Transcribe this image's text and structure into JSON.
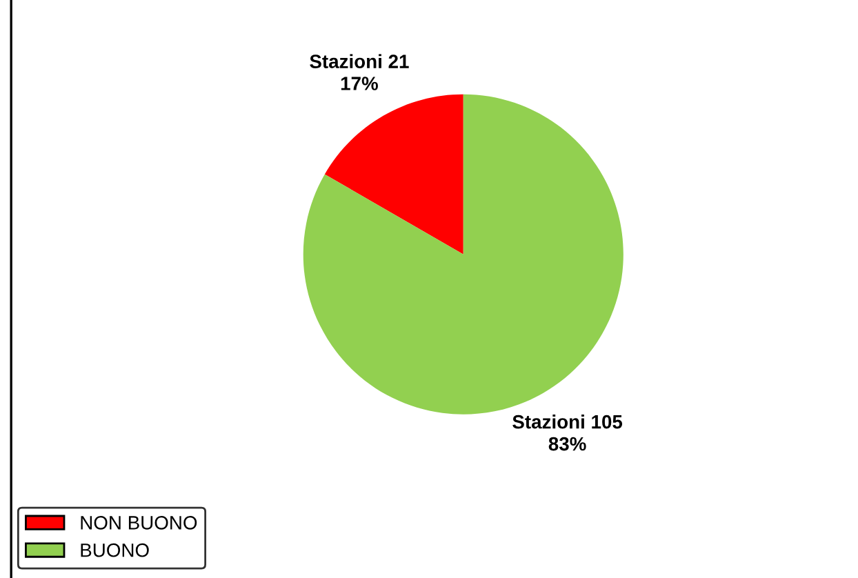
{
  "chart_data": {
    "type": "pie",
    "categories": [
      "NON BUONO",
      "BUONO"
    ],
    "values": [
      21,
      105
    ],
    "colors": [
      "#ff0000",
      "#92d050"
    ],
    "value_labels": [
      "Stazioni 21\n17%",
      "Stazioni 105\n83%"
    ],
    "legend": "bottom left"
  }
}
